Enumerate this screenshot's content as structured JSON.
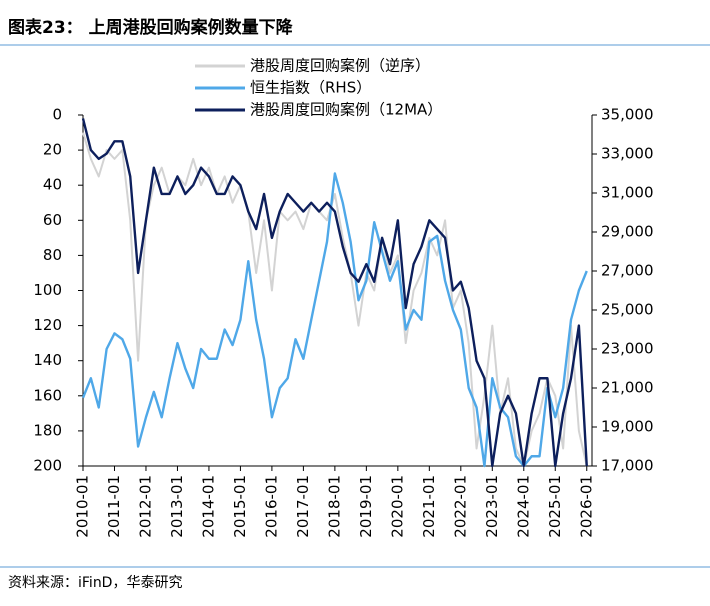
{
  "chart_data": {
    "type": "line",
    "title": "图表23：  上周港股回购案例数量下降",
    "source": "资料来源：iFinD，华泰研究",
    "x": [
      "2010-01",
      "2010-04",
      "2010-07",
      "2010-10",
      "2011-01",
      "2011-04",
      "2011-07",
      "2011-10",
      "2012-01",
      "2012-04",
      "2012-07",
      "2012-10",
      "2013-01",
      "2013-04",
      "2013-07",
      "2013-10",
      "2014-01",
      "2014-04",
      "2014-07",
      "2014-10",
      "2015-01",
      "2015-04",
      "2015-07",
      "2015-10",
      "2016-01",
      "2016-04",
      "2016-07",
      "2016-10",
      "2017-01",
      "2017-04",
      "2017-07",
      "2017-10",
      "2018-01",
      "2018-04",
      "2018-07",
      "2018-10",
      "2019-01",
      "2019-04",
      "2019-07",
      "2019-10",
      "2020-01",
      "2020-04",
      "2020-07",
      "2020-10",
      "2021-01",
      "2021-04",
      "2021-07",
      "2021-10",
      "2022-01",
      "2022-04",
      "2022-07",
      "2022-10",
      "2023-01",
      "2023-04",
      "2023-07",
      "2023-10",
      "2024-01",
      "2024-04",
      "2024-07",
      "2024-10",
      "2025-01",
      "2025-04",
      "2025-07",
      "2025-10",
      "2026-01"
    ],
    "xlim": [
      "2010-01",
      "2026-03"
    ],
    "xticks": [
      "2010-01",
      "2011-01",
      "2012-01",
      "2013-01",
      "2014-01",
      "2015-01",
      "2016-01",
      "2017-01",
      "2018-01",
      "2019-01",
      "2020-01",
      "2021-01",
      "2022-01",
      "2023-01",
      "2024-01",
      "2025-01",
      "2026-01"
    ],
    "ylim": [
      0,
      200
    ],
    "y_reversed": true,
    "yticks": [
      0,
      20,
      40,
      60,
      80,
      100,
      120,
      140,
      160,
      180,
      200
    ],
    "y2lim": [
      17000,
      35000
    ],
    "y2ticks": [
      {
        "value": 17000,
        "label": "17,000"
      },
      {
        "value": 19000,
        "label": "19,000"
      },
      {
        "value": 21000,
        "label": "21,000"
      },
      {
        "value": 23000,
        "label": "23,000"
      },
      {
        "value": 25000,
        "label": "25,000"
      },
      {
        "value": 27000,
        "label": "27,000"
      },
      {
        "value": 29000,
        "label": "29,000"
      },
      {
        "value": 31000,
        "label": "31,000"
      },
      {
        "value": 33000,
        "label": "33,000"
      },
      {
        "value": 35000,
        "label": "35,000"
      }
    ],
    "grid": false,
    "series": [
      {
        "name": "港股周度回购案例（逆序）",
        "color": "#d3d3d3",
        "values": [
          10,
          25,
          35,
          20,
          25,
          20,
          60,
          140,
          60,
          40,
          30,
          45,
          35,
          40,
          25,
          40,
          30,
          45,
          35,
          50,
          40,
          55,
          90,
          60,
          100,
          55,
          60,
          55,
          65,
          50,
          55,
          60,
          45,
          70,
          90,
          120,
          90,
          100,
          70,
          90,
          80,
          130,
          100,
          90,
          70,
          80,
          60,
          110,
          100,
          130,
          190,
          160,
          120,
          170,
          150,
          190,
          200,
          180,
          170,
          150,
          160,
          190,
          120,
          180,
          200
        ]
      },
      {
        "name": "恒生指数（RHS）",
        "color": "#4fa8e8",
        "axis": "y2",
        "values": [
          20500,
          21500,
          20000,
          23000,
          23800,
          23500,
          22500,
          18000,
          19500,
          20800,
          19500,
          21500,
          23300,
          22000,
          21000,
          23000,
          22500,
          22500,
          24000,
          23200,
          24500,
          27500,
          24500,
          22500,
          19500,
          21000,
          21500,
          23500,
          22500,
          24500,
          26500,
          28500,
          32000,
          30500,
          28500,
          25500,
          26500,
          29500,
          28000,
          26500,
          27500,
          24000,
          25000,
          24500,
          28500,
          28800,
          26500,
          25000,
          24000,
          21000,
          20000,
          17000,
          21500,
          20000,
          19500,
          17500,
          17000,
          17500,
          17500,
          21000,
          19500,
          21000,
          24500,
          26000,
          27000
        ]
      },
      {
        "name": "港股周度回购案例（12MA）",
        "color": "#0d1f5c",
        "values": [
          2,
          20,
          25,
          22,
          15,
          15,
          35,
          90,
          60,
          30,
          45,
          45,
          35,
          45,
          40,
          30,
          35,
          45,
          45,
          35,
          40,
          55,
          65,
          45,
          70,
          55,
          45,
          50,
          55,
          50,
          55,
          50,
          55,
          75,
          90,
          95,
          85,
          95,
          70,
          85,
          60,
          110,
          85,
          75,
          60,
          65,
          70,
          100,
          95,
          110,
          140,
          150,
          200,
          170,
          160,
          170,
          200,
          170,
          150,
          150,
          200,
          170,
          150,
          120,
          200
        ]
      }
    ]
  }
}
